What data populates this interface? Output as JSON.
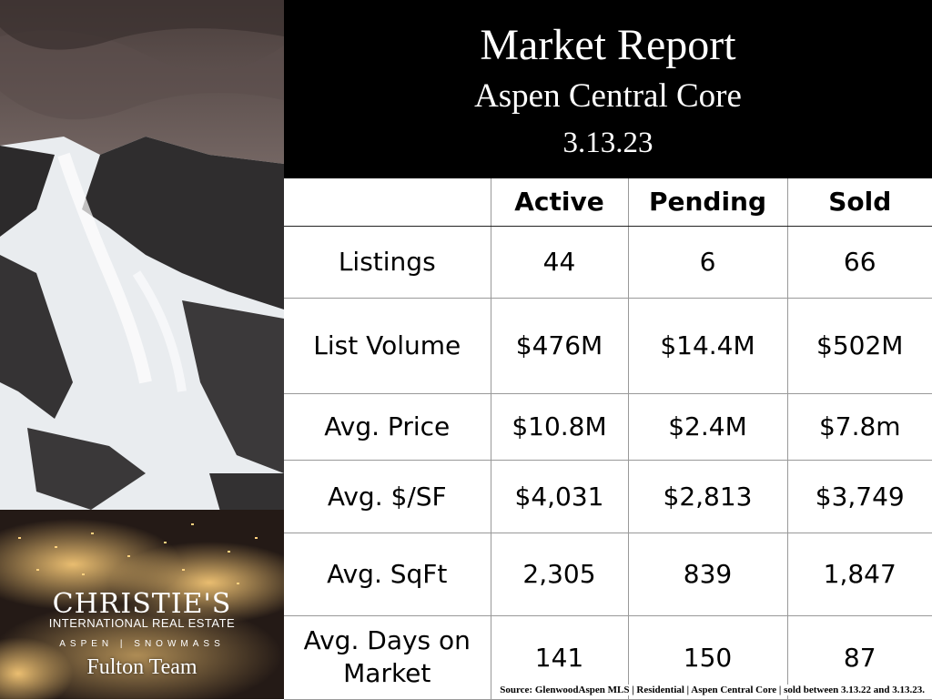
{
  "header": {
    "title": "Market Report",
    "subtitle": "Aspen Central Core",
    "date": "3.13.23"
  },
  "table": {
    "columns": [
      "",
      "Active",
      "Pending",
      "Sold"
    ],
    "rows": [
      {
        "label": "Listings",
        "values": [
          "44",
          "6",
          "66"
        ]
      },
      {
        "label": "List Volume",
        "values": [
          "$476M",
          "$14.4M",
          "$502M"
        ]
      },
      {
        "label": "Avg. Price",
        "values": [
          "$10.8M",
          "$2.4M",
          "$7.8m"
        ]
      },
      {
        "label": "Avg. $/SF",
        "values": [
          "$4,031",
          "$2,813",
          "$3,749"
        ]
      },
      {
        "label": "Avg. SqFt",
        "values": [
          "2,305",
          "839",
          "1,847"
        ]
      },
      {
        "label": "Avg. Days on Market",
        "values": [
          "141",
          "150",
          "87"
        ]
      }
    ]
  },
  "source_note": "Source: GlenwoodAspen MLS | Residential | Aspen Central Core | sold between 3.13.22 and 3.13.23.",
  "branding": {
    "main": "CHRISTIE'S",
    "sub": "INTERNATIONAL REAL ESTATE",
    "location": "ASPEN | SNOWMASS",
    "team": "Fulton Team"
  },
  "photo": {
    "icon": "mountain-town-photo"
  },
  "colors": {
    "header_bg": "#000000",
    "header_text": "#ffffff",
    "table_border": "#999999"
  }
}
